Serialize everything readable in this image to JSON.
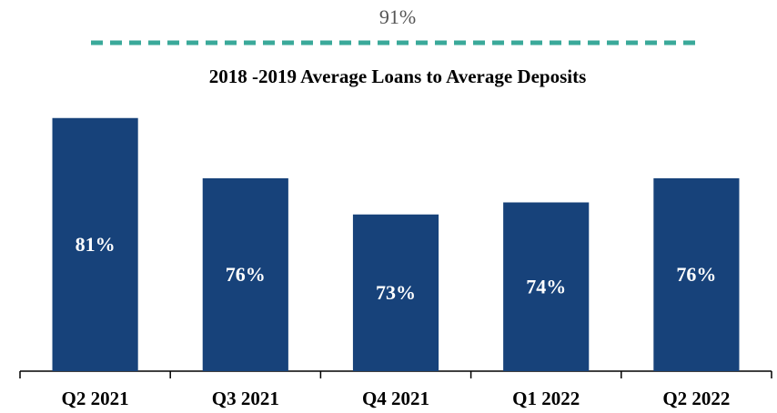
{
  "chart_data": {
    "type": "bar",
    "annotation": "91%",
    "title": "2018 -2019 Average Loans to Average Deposits",
    "categories": [
      "Q2 2021",
      "Q3 2021",
      "Q4 2021",
      "Q1 2022",
      "Q2 2022"
    ],
    "values": [
      81,
      76,
      73,
      74,
      76
    ],
    "value_labels": [
      "81%",
      "76%",
      "73%",
      "74%",
      "76%"
    ],
    "color": "#17427a",
    "ylim": [
      60,
      88
    ]
  }
}
